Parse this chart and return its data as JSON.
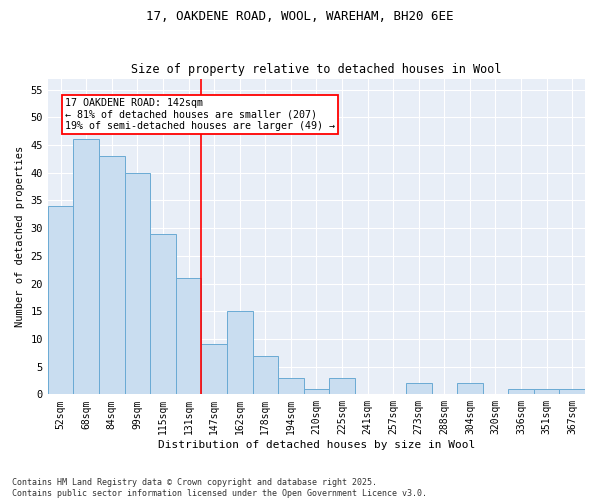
{
  "title1": "17, OAKDENE ROAD, WOOL, WAREHAM, BH20 6EE",
  "title2": "Size of property relative to detached houses in Wool",
  "xlabel": "Distribution of detached houses by size in Wool",
  "ylabel": "Number of detached properties",
  "categories": [
    "52sqm",
    "68sqm",
    "84sqm",
    "99sqm",
    "115sqm",
    "131sqm",
    "147sqm",
    "162sqm",
    "178sqm",
    "194sqm",
    "210sqm",
    "225sqm",
    "241sqm",
    "257sqm",
    "273sqm",
    "288sqm",
    "304sqm",
    "320sqm",
    "336sqm",
    "351sqm",
    "367sqm"
  ],
  "values": [
    34,
    46,
    43,
    40,
    29,
    21,
    9,
    15,
    7,
    3,
    1,
    3,
    0,
    0,
    2,
    0,
    2,
    0,
    1,
    1,
    1
  ],
  "bar_color": "#c9ddf0",
  "bar_edgecolor": "#6aaad4",
  "background_color": "#e8eef7",
  "vline_x": 6.0,
  "vline_color": "red",
  "annotation_text": "17 OAKDENE ROAD: 142sqm\n← 81% of detached houses are smaller (207)\n19% of semi-detached houses are larger (49) →",
  "annotation_box_edgecolor": "red",
  "ylim": [
    0,
    57
  ],
  "yticks": [
    0,
    5,
    10,
    15,
    20,
    25,
    30,
    35,
    40,
    45,
    50,
    55
  ],
  "footer": "Contains HM Land Registry data © Crown copyright and database right 2025.\nContains public sector information licensed under the Open Government Licence v3.0."
}
